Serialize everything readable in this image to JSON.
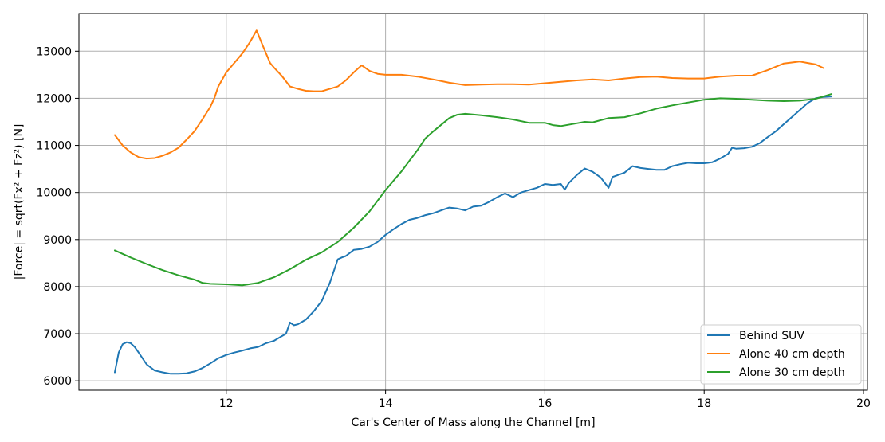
{
  "chart_data": {
    "type": "line",
    "title": "",
    "xlabel": "Car's Center of Mass along the Channel [m]",
    "ylabel": "|Force| = sqrt(Fx² + Fz²) [N]",
    "xlim": [
      10.15,
      20.05
    ],
    "ylim": [
      5800,
      13800
    ],
    "xticks": [
      12,
      14,
      16,
      18,
      20
    ],
    "yticks": [
      6000,
      7000,
      8000,
      9000,
      10000,
      11000,
      12000,
      13000
    ],
    "grid": true,
    "legend": "lower-right",
    "series": [
      {
        "name": "Behind SUV",
        "color": "#1f77b4",
        "x": [
          10.6,
          10.65,
          10.7,
          10.75,
          10.8,
          10.85,
          10.9,
          11.0,
          11.1,
          11.2,
          11.3,
          11.4,
          11.5,
          11.6,
          11.7,
          11.8,
          11.9,
          12.0,
          12.1,
          12.2,
          12.3,
          12.4,
          12.5,
          12.6,
          12.7,
          12.75,
          12.8,
          12.85,
          12.9,
          13.0,
          13.1,
          13.2,
          13.3,
          13.4,
          13.45,
          13.5,
          13.6,
          13.7,
          13.8,
          13.9,
          14.0,
          14.1,
          14.2,
          14.3,
          14.4,
          14.5,
          14.6,
          14.7,
          14.8,
          14.9,
          15.0,
          15.1,
          15.2,
          15.3,
          15.4,
          15.5,
          15.6,
          15.7,
          15.8,
          15.9,
          16.0,
          16.1,
          16.2,
          16.25,
          16.3,
          16.4,
          16.5,
          16.6,
          16.7,
          16.8,
          16.85,
          16.9,
          17.0,
          17.1,
          17.2,
          17.3,
          17.4,
          17.5,
          17.6,
          17.7,
          17.8,
          17.9,
          18.0,
          18.1,
          18.2,
          18.3,
          18.35,
          18.4,
          18.5,
          18.6,
          18.7,
          18.8,
          18.9,
          19.0,
          19.1,
          19.2,
          19.3,
          19.4,
          19.5,
          19.6
        ],
        "y": [
          6180,
          6600,
          6780,
          6820,
          6800,
          6720,
          6600,
          6350,
          6220,
          6180,
          6150,
          6150,
          6160,
          6200,
          6270,
          6370,
          6480,
          6550,
          6600,
          6640,
          6690,
          6720,
          6800,
          6850,
          6950,
          7000,
          7240,
          7180,
          7200,
          7300,
          7480,
          7700,
          8080,
          8580,
          8620,
          8650,
          8780,
          8800,
          8850,
          8950,
          9100,
          9220,
          9330,
          9420,
          9460,
          9520,
          9560,
          9620,
          9680,
          9660,
          9620,
          9700,
          9720,
          9800,
          9900,
          9980,
          9900,
          10000,
          10050,
          10100,
          10180,
          10160,
          10180,
          10060,
          10200,
          10370,
          10510,
          10440,
          10320,
          10100,
          10330,
          10360,
          10420,
          10560,
          10520,
          10500,
          10480,
          10480,
          10560,
          10600,
          10630,
          10620,
          10620,
          10640,
          10720,
          10820,
          10950,
          10930,
          10940,
          10970,
          11050,
          11180,
          11300,
          11450,
          11600,
          11750,
          11900,
          12000,
          12030,
          12040
        ]
      },
      {
        "name": "Alone 40 cm depth",
        "color": "#ff7f0e",
        "x": [
          10.6,
          10.7,
          10.8,
          10.9,
          11.0,
          11.1,
          11.2,
          11.3,
          11.4,
          11.5,
          11.6,
          11.7,
          11.8,
          11.85,
          11.9,
          12.0,
          12.1,
          12.2,
          12.3,
          12.38,
          12.45,
          12.5,
          12.55,
          12.6,
          12.7,
          12.8,
          12.9,
          13.0,
          13.1,
          13.2,
          13.3,
          13.4,
          13.5,
          13.6,
          13.7,
          13.8,
          13.9,
          14.0,
          14.2,
          14.4,
          14.6,
          14.8,
          15.0,
          15.2,
          15.4,
          15.6,
          15.8,
          16.0,
          16.2,
          16.4,
          16.6,
          16.8,
          17.0,
          17.2,
          17.4,
          17.6,
          17.8,
          18.0,
          18.2,
          18.4,
          18.6,
          18.8,
          19.0,
          19.2,
          19.4,
          19.5
        ],
        "y": [
          11220,
          11000,
          10850,
          10750,
          10720,
          10730,
          10780,
          10850,
          10950,
          11120,
          11300,
          11550,
          11820,
          12000,
          12250,
          12550,
          12750,
          12950,
          13200,
          13440,
          13150,
          12950,
          12750,
          12650,
          12470,
          12250,
          12200,
          12160,
          12150,
          12150,
          12200,
          12250,
          12380,
          12550,
          12700,
          12580,
          12520,
          12500,
          12500,
          12460,
          12400,
          12330,
          12280,
          12290,
          12300,
          12300,
          12290,
          12320,
          12350,
          12380,
          12400,
          12380,
          12420,
          12450,
          12460,
          12430,
          12420,
          12420,
          12460,
          12480,
          12480,
          12600,
          12740,
          12780,
          12720,
          12640
        ]
      },
      {
        "name": "Alone 30 cm depth",
        "color": "#2ca02c",
        "x": [
          10.6,
          10.8,
          11.0,
          11.2,
          11.4,
          11.6,
          11.7,
          11.8,
          12.0,
          12.2,
          12.4,
          12.6,
          12.8,
          13.0,
          13.2,
          13.4,
          13.6,
          13.8,
          14.0,
          14.2,
          14.4,
          14.5,
          14.6,
          14.8,
          14.9,
          15.0,
          15.2,
          15.4,
          15.6,
          15.8,
          16.0,
          16.1,
          16.2,
          16.4,
          16.5,
          16.6,
          16.8,
          17.0,
          17.2,
          17.4,
          17.6,
          17.8,
          18.0,
          18.2,
          18.4,
          18.6,
          18.8,
          19.0,
          19.2,
          19.4,
          19.6
        ],
        "y": [
          8770,
          8620,
          8480,
          8350,
          8240,
          8150,
          8080,
          8060,
          8050,
          8030,
          8080,
          8200,
          8370,
          8570,
          8730,
          8950,
          9250,
          9600,
          10050,
          10450,
          10900,
          11150,
          11300,
          11580,
          11650,
          11670,
          11640,
          11600,
          11550,
          11480,
          11480,
          11430,
          11410,
          11470,
          11500,
          11490,
          11580,
          11600,
          11680,
          11780,
          11850,
          11910,
          11970,
          12000,
          11990,
          11970,
          11950,
          11940,
          11950,
          11990,
          12090
        ]
      }
    ]
  }
}
